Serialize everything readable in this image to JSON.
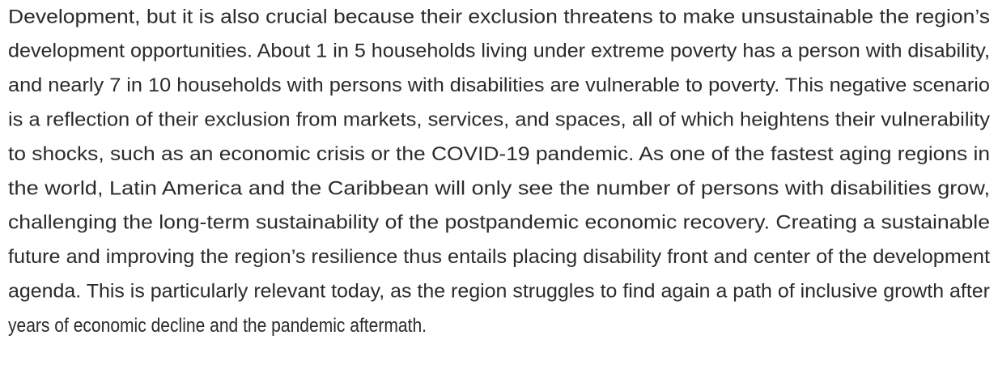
{
  "paragraph": {
    "lines": [
      "Development, but it is also crucial because their exclusion threatens to make unsustainable the region’s",
      "development opportunities. About 1 in 5 households living under extreme poverty has a person with disability,",
      "and nearly 7 in 10 households with persons with disabilities are vulnerable to poverty. This negative scenario",
      "is a reflection of their exclusion from markets, services, and spaces, all of which heightens their vulnerability",
      "to shocks, such as an economic crisis or the COVID-19 pandemic. As one of the fastest aging regions in",
      "the world, Latin America and the Caribbean will only see the number of persons with disabilities grow,",
      "challenging the long-term sustainability of the postpandemic economic recovery. Creating a sustainable",
      "future and improving the region’s resilience thus entails placing disability front and center of the development",
      "agenda. This is particularly relevant today, as the region struggles to find again a path of inclusive growth after",
      "years of economic decline and the pandemic aftermath."
    ]
  }
}
